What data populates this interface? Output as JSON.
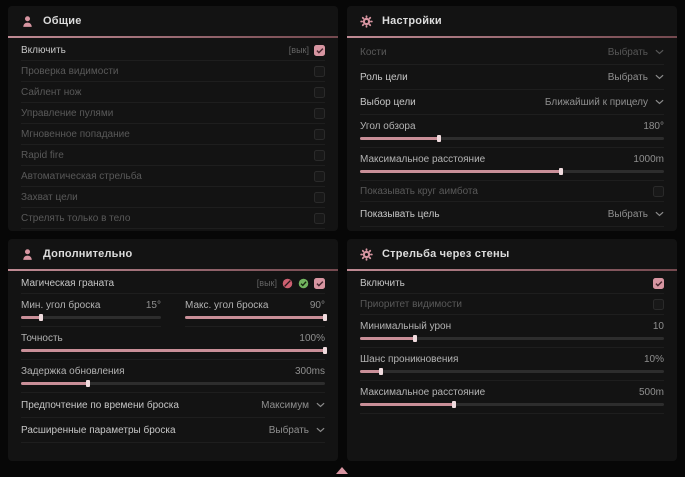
{
  "colors": {
    "page_bg": "#070707",
    "panel_bg": "#131313",
    "accent": "#d795a1",
    "slider_fill": "#c98f98",
    "header_line": "#9c6d75",
    "text": "#c6c6c6",
    "text_dim": "#595959"
  },
  "footer": {
    "indicator": "triangle-up-icon"
  },
  "panels": [
    {
      "key": "general",
      "title": "Общие",
      "icon": "person-icon",
      "rows": [
        {
          "kind": "toggle",
          "label": "Включить",
          "suffix": "[вык]",
          "checked": true,
          "dim": false
        },
        {
          "kind": "toggle",
          "label": "Проверка видимости",
          "checked": false,
          "dim": true
        },
        {
          "kind": "toggle",
          "label": "Сайлент нож",
          "checked": false,
          "dim": true
        },
        {
          "kind": "toggle",
          "label": "Управление пулями",
          "checked": false,
          "dim": true
        },
        {
          "kind": "toggle",
          "label": "Мгновенное попадание",
          "checked": false,
          "dim": true
        },
        {
          "kind": "toggle",
          "label": "Rapid fire",
          "checked": false,
          "dim": true
        },
        {
          "kind": "toggle",
          "label": "Автоматическая стрельба",
          "checked": false,
          "dim": true
        },
        {
          "kind": "toggle",
          "label": "Захват цели",
          "checked": false,
          "dim": true
        },
        {
          "kind": "toggle",
          "label": "Стрелять только в тело",
          "checked": false,
          "dim": true
        }
      ]
    },
    {
      "key": "settings",
      "title": "Настройки",
      "icon": "gear-icon",
      "rows": [
        {
          "kind": "dropdown",
          "label": "Кости",
          "value": "Выбрать",
          "dim": true
        },
        {
          "kind": "dropdown",
          "label": "Роль цели",
          "value": "Выбрать",
          "dim": false
        },
        {
          "kind": "dropdown",
          "label": "Выбор цели",
          "value": "Ближайший к прицелу",
          "dim": false
        },
        {
          "kind": "slider",
          "label": "Угол обзора",
          "value": "180°",
          "fill": 26
        },
        {
          "kind": "slider",
          "label": "Максимальное расстояние",
          "value": "1000m",
          "fill": 66
        },
        {
          "kind": "toggle",
          "label": "Показывать круг аимбота",
          "checked": false,
          "dim": true
        },
        {
          "kind": "dropdown",
          "label": "Показывать цель",
          "value": "Выбрать",
          "dim": false
        }
      ]
    },
    {
      "key": "additional",
      "title": "Дополнительно",
      "icon": "person-icon",
      "rows": [
        {
          "kind": "toggle",
          "label": "Магическая граната",
          "suffix": "[вык]",
          "checked": true,
          "dim": false,
          "extra_icons": [
            "crossed-circle-icon",
            "check-circle-icon"
          ]
        },
        {
          "kind": "slider-pair",
          "items": [
            {
              "label": "Мин. угол броска",
              "value": "15°",
              "fill": 14
            },
            {
              "label": "Макс. угол броска",
              "value": "90°",
              "fill": 100
            }
          ]
        },
        {
          "kind": "slider",
          "label": "Точность",
          "value": "100%",
          "fill": 100
        },
        {
          "kind": "slider",
          "label": "Задержка обновления",
          "value": "300ms",
          "fill": 22
        },
        {
          "kind": "dropdown",
          "label": "Предпочтение по времени броска",
          "value": "Максимум",
          "dim": false
        },
        {
          "kind": "dropdown",
          "label": "Расширенные параметры броска",
          "value": "Выбрать",
          "dim": false
        }
      ]
    },
    {
      "key": "wallshoot",
      "title": "Стрельба через стены",
      "icon": "gear-icon",
      "rows": [
        {
          "kind": "toggle",
          "label": "Включить",
          "checked": true,
          "dim": false
        },
        {
          "kind": "toggle",
          "label": "Приоритет видимости",
          "checked": false,
          "dim": true
        },
        {
          "kind": "slider",
          "label": "Минимальный урон",
          "value": "10",
          "fill": 18
        },
        {
          "kind": "slider",
          "label": "Шанс проникновения",
          "value": "10%",
          "fill": 7
        },
        {
          "kind": "slider",
          "label": "Максимальное расстояние",
          "value": "500m",
          "fill": 31
        }
      ]
    }
  ]
}
